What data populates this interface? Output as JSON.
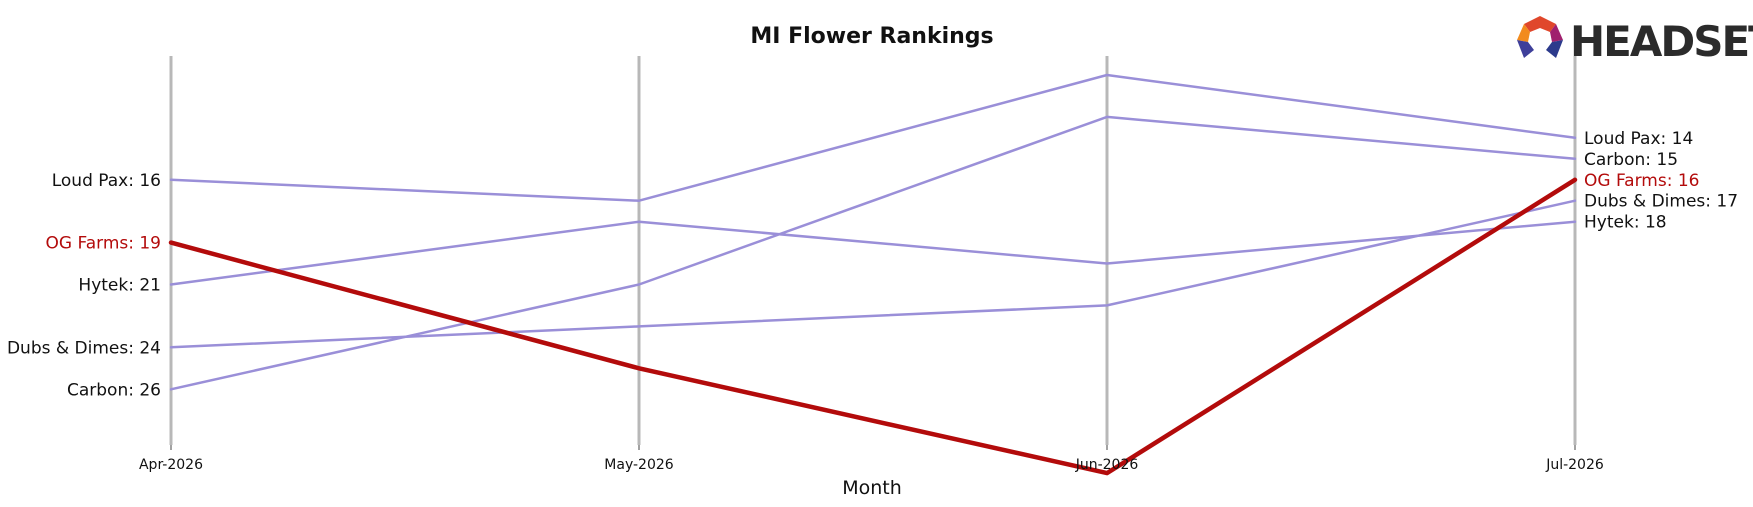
{
  "chart_data": {
    "type": "line",
    "title": "MI Flower Rankings",
    "xlabel": "Month",
    "ylabel": "",
    "categories": [
      "Apr-2026",
      "May-2026",
      "Jun-2026",
      "Jul-2026"
    ],
    "y_inverted": true,
    "ylim": [
      13,
      30
    ],
    "grid": "vertical lines at each month",
    "highlight_color": "#b30b0b",
    "other_color": "#9a8fd8",
    "series": [
      {
        "name": "Loud Pax",
        "values": [
          16,
          17,
          11,
          14
        ],
        "highlight": false
      },
      {
        "name": "Carbon",
        "values": [
          26,
          21,
          13,
          15
        ],
        "highlight": false
      },
      {
        "name": "Dubs & Dimes",
        "values": [
          24,
          23,
          22,
          17
        ],
        "highlight": false
      },
      {
        "name": "Hytek",
        "values": [
          21,
          18,
          20,
          18
        ],
        "highlight": false
      },
      {
        "name": "OG Farms",
        "values": [
          19,
          25,
          30,
          16
        ],
        "highlight": true
      }
    ]
  },
  "logo": {
    "text": "HEADSET"
  }
}
